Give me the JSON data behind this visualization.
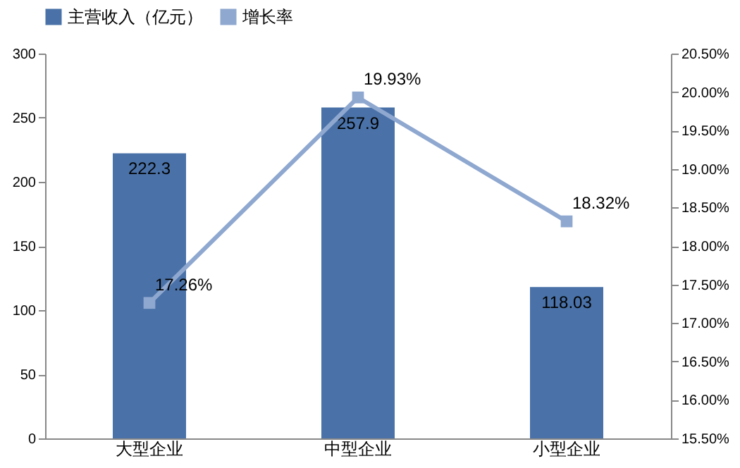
{
  "chart_data": {
    "type": "bar",
    "categories": [
      "大型企业",
      "中型企业",
      "小型企业"
    ],
    "series": [
      {
        "name": "主营收入（亿元）",
        "color": "#4a72a8",
        "values": [
          222.3,
          257.9,
          118.03
        ],
        "value_labels": [
          "222.3",
          "257.9",
          "118.03"
        ]
      },
      {
        "name": "增长率",
        "type": "line",
        "axis": "y2",
        "color": "#8fa8d0",
        "values": [
          17.26,
          19.93,
          18.32
        ],
        "value_labels": [
          "17.26%",
          "19.93%",
          "18.32%"
        ],
        "marker": "square",
        "line_style": "solid"
      }
    ],
    "ylim": [
      0,
      300
    ],
    "yticks": [
      0,
      50,
      100,
      150,
      200,
      250,
      300
    ],
    "y2lim": [
      15.5,
      20.5
    ],
    "y2ticks": [
      {
        "value": 15.5,
        "label": "15.50%"
      },
      {
        "value": 16,
        "label": "16.00%"
      },
      {
        "value": 16.5,
        "label": "16.50%"
      },
      {
        "value": 17,
        "label": "17.00%"
      },
      {
        "value": 17.5,
        "label": "17.50%"
      },
      {
        "value": 18,
        "label": "18.00%"
      },
      {
        "value": 18.5,
        "label": "18.50%"
      },
      {
        "value": 19,
        "label": "19.00%"
      },
      {
        "value": 19.5,
        "label": "19.50%"
      },
      {
        "value": 20,
        "label": "20.00%"
      },
      {
        "value": 20.5,
        "label": "20.50%"
      }
    ],
    "legend": "top",
    "grid": false
  }
}
